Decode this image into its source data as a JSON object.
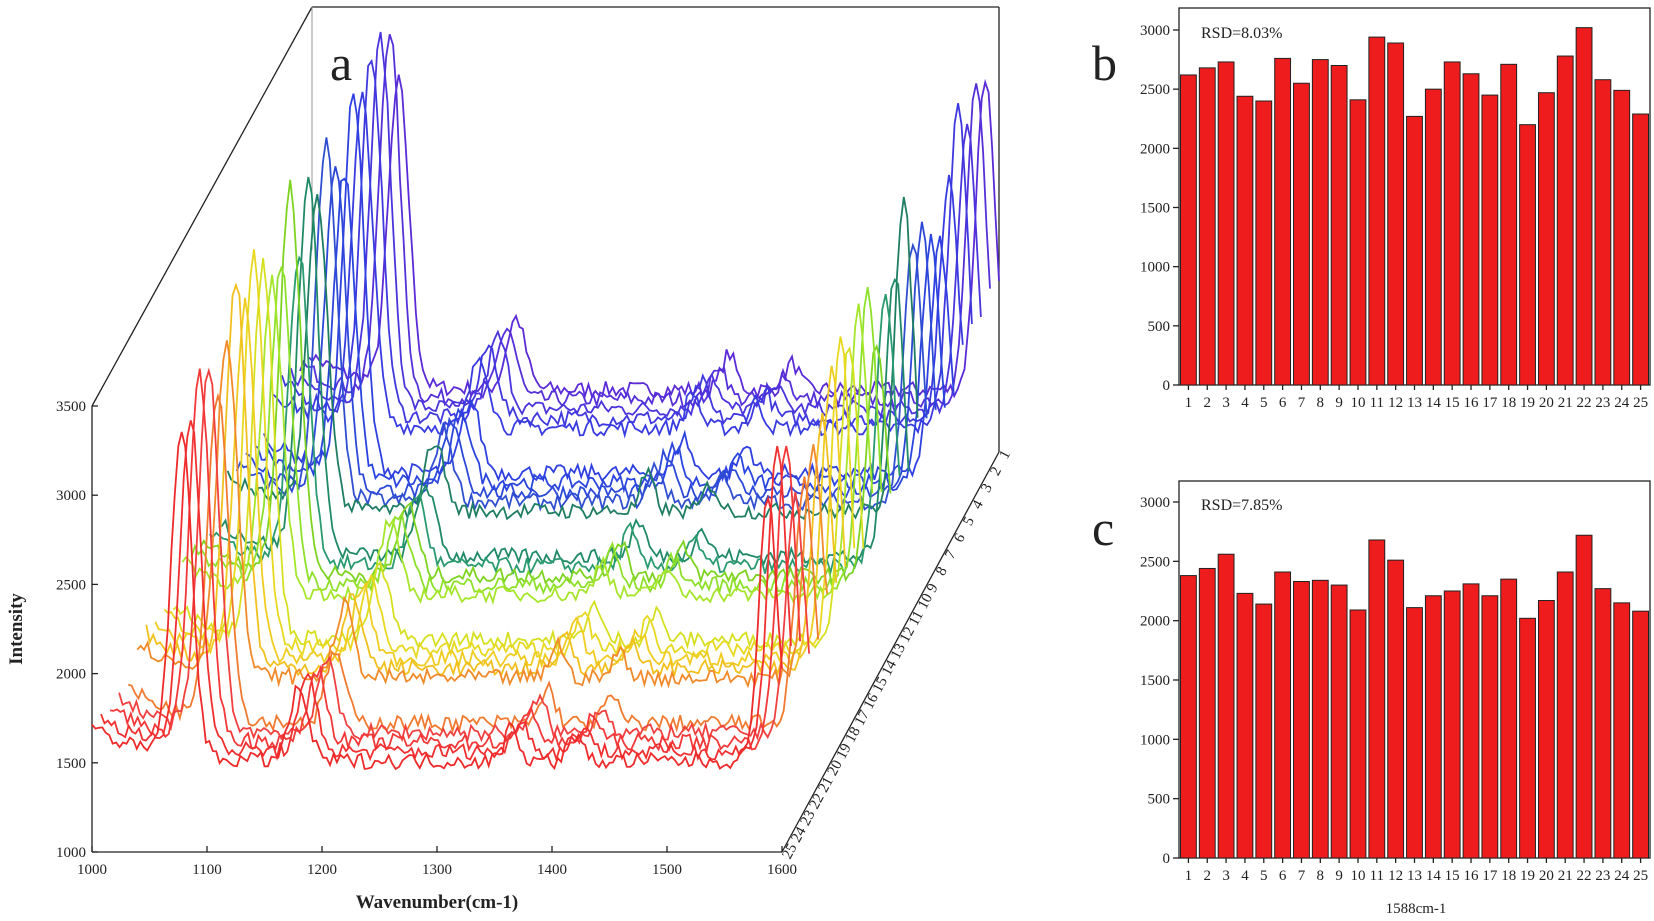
{
  "chart_data": [
    {
      "panel": "a",
      "type": "line",
      "style": "3d-waterfall",
      "xlabel": "Wavenumber(cm-1)",
      "ylabel": "Intensity",
      "xlim": [
        1000,
        1600
      ],
      "ylim": [
        1000,
        3500
      ],
      "xticks": [
        "1000",
        "1100",
        "1200",
        "1300",
        "1400",
        "1500",
        "1600"
      ],
      "yticks": [
        "1000",
        "1500",
        "2000",
        "2500",
        "3000",
        "3500"
      ],
      "depth_ticks": [
        "1",
        "2",
        "3",
        "4",
        "5",
        "6",
        "7",
        "8",
        "9",
        "10",
        "11",
        "12",
        "13",
        "14",
        "15",
        "16",
        "17",
        "18",
        "19",
        "20",
        "21",
        "22",
        "23",
        "24",
        "25"
      ],
      "grid": false,
      "series_colors": [
        "#5a2bd6",
        "#5530d8",
        "#4a34dc",
        "#3f38de",
        "#383ce0",
        "#2f40e0",
        "#2a44de",
        "#2c48d8",
        "#2f4fd0",
        "#1f7e62",
        "#208a66",
        "#2a9a70",
        "#7ed321",
        "#8ee02a",
        "#a6e62a",
        "#d6e020",
        "#e8d820",
        "#f0cc20",
        "#f2c01e",
        "#f08a2a",
        "#f07a30",
        "#f04040",
        "#f23838",
        "#f03030",
        "#ee2a2a"
      ],
      "peaks_cm-1": [
        1078,
        1180,
        1365,
        1420,
        1588
      ]
    },
    {
      "panel": "b",
      "type": "bar",
      "annotation": "RSD=8.03%",
      "categories": [
        "1",
        "2",
        "3",
        "4",
        "5",
        "6",
        "7",
        "8",
        "9",
        "10",
        "11",
        "12",
        "13",
        "14",
        "15",
        "16",
        "17",
        "18",
        "19",
        "20",
        "21",
        "22",
        "23",
        "24",
        "25"
      ],
      "values": [
        2620,
        2680,
        2730,
        2440,
        2400,
        2760,
        2550,
        2750,
        2700,
        2410,
        2940,
        2890,
        2270,
        2500,
        2730,
        2630,
        2450,
        2710,
        2200,
        2470,
        2780,
        3020,
        2580,
        2490,
        2290
      ],
      "yticks": [
        "0",
        "500",
        "1000",
        "1500",
        "2000",
        "2500",
        "3000"
      ],
      "ylim": [
        0,
        3200
      ],
      "bar_color": "#ee1c1c",
      "grid": false
    },
    {
      "panel": "c",
      "type": "bar",
      "annotation": "RSD=7.85%",
      "xlabel": "1588cm-1",
      "categories": [
        "1",
        "2",
        "3",
        "4",
        "5",
        "6",
        "7",
        "8",
        "9",
        "10",
        "11",
        "12",
        "13",
        "14",
        "15",
        "16",
        "17",
        "18",
        "19",
        "20",
        "21",
        "22",
        "23",
        "24",
        "25"
      ],
      "values": [
        2380,
        2440,
        2560,
        2230,
        2140,
        2410,
        2330,
        2340,
        2300,
        2090,
        2680,
        2510,
        2110,
        2210,
        2250,
        2310,
        2210,
        2350,
        2020,
        2170,
        2410,
        2720,
        2270,
        2150,
        2080
      ],
      "yticks": [
        "0",
        "500",
        "1000",
        "1500",
        "2000",
        "2500",
        "3000"
      ],
      "ylim": [
        0,
        3200
      ],
      "bar_color": "#ee1c1c",
      "grid": false
    }
  ]
}
